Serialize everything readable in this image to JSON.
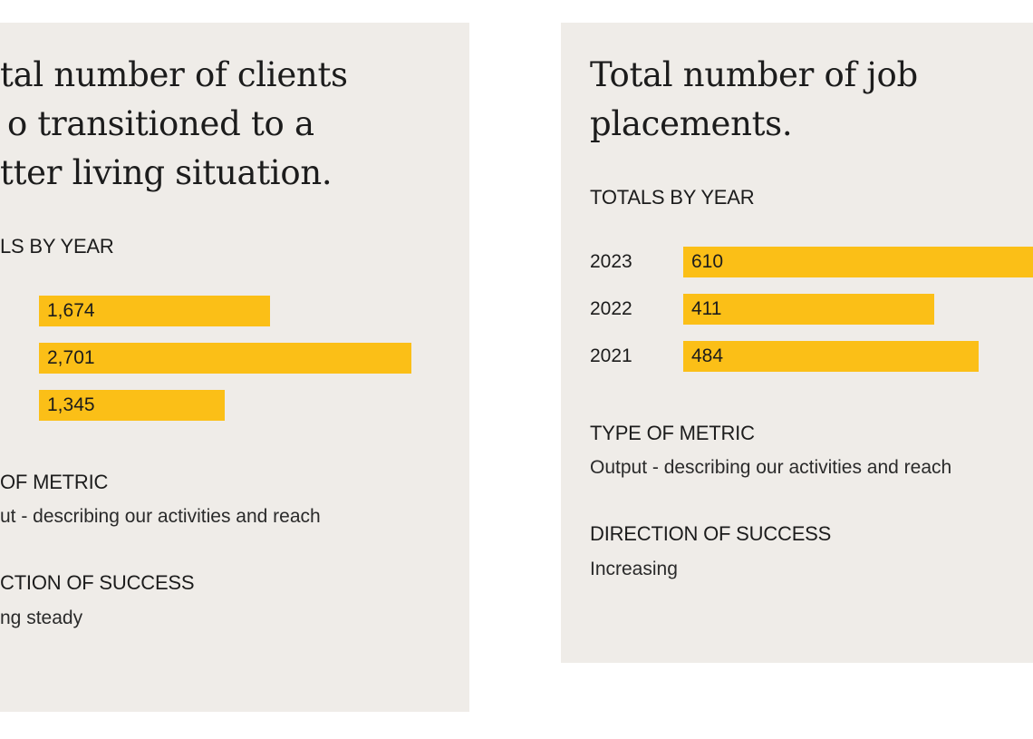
{
  "cards": [
    {
      "title_lines": [
        "tal number of clients",
        "o transitioned to a",
        "tter living situation."
      ],
      "totals_heading": "LS BY YEAR",
      "bars": [
        {
          "value": 1674,
          "label": "1,674"
        },
        {
          "value": 2701,
          "label": "2,701"
        },
        {
          "value": 1345,
          "label": "1,345"
        }
      ],
      "metric_heading": "OF METRIC",
      "metric": "ut - describing our activities and reach",
      "direction_heading": "CTION OF SUCCESS",
      "direction": "ng steady"
    },
    {
      "title_lines": [
        "Total number of job",
        "placements."
      ],
      "totals_heading": "TOTALS BY YEAR",
      "years": [
        "2023",
        "2022",
        "2021"
      ],
      "bars": [
        {
          "value": 610,
          "label": "610"
        },
        {
          "value": 411,
          "label": "411"
        },
        {
          "value": 484,
          "label": "484"
        }
      ],
      "metric_heading": "TYPE OF METRIC",
      "metric": "Output - describing our activities and reach",
      "direction_heading": "DIRECTION OF SUCCESS",
      "direction": "Increasing"
    }
  ]
}
